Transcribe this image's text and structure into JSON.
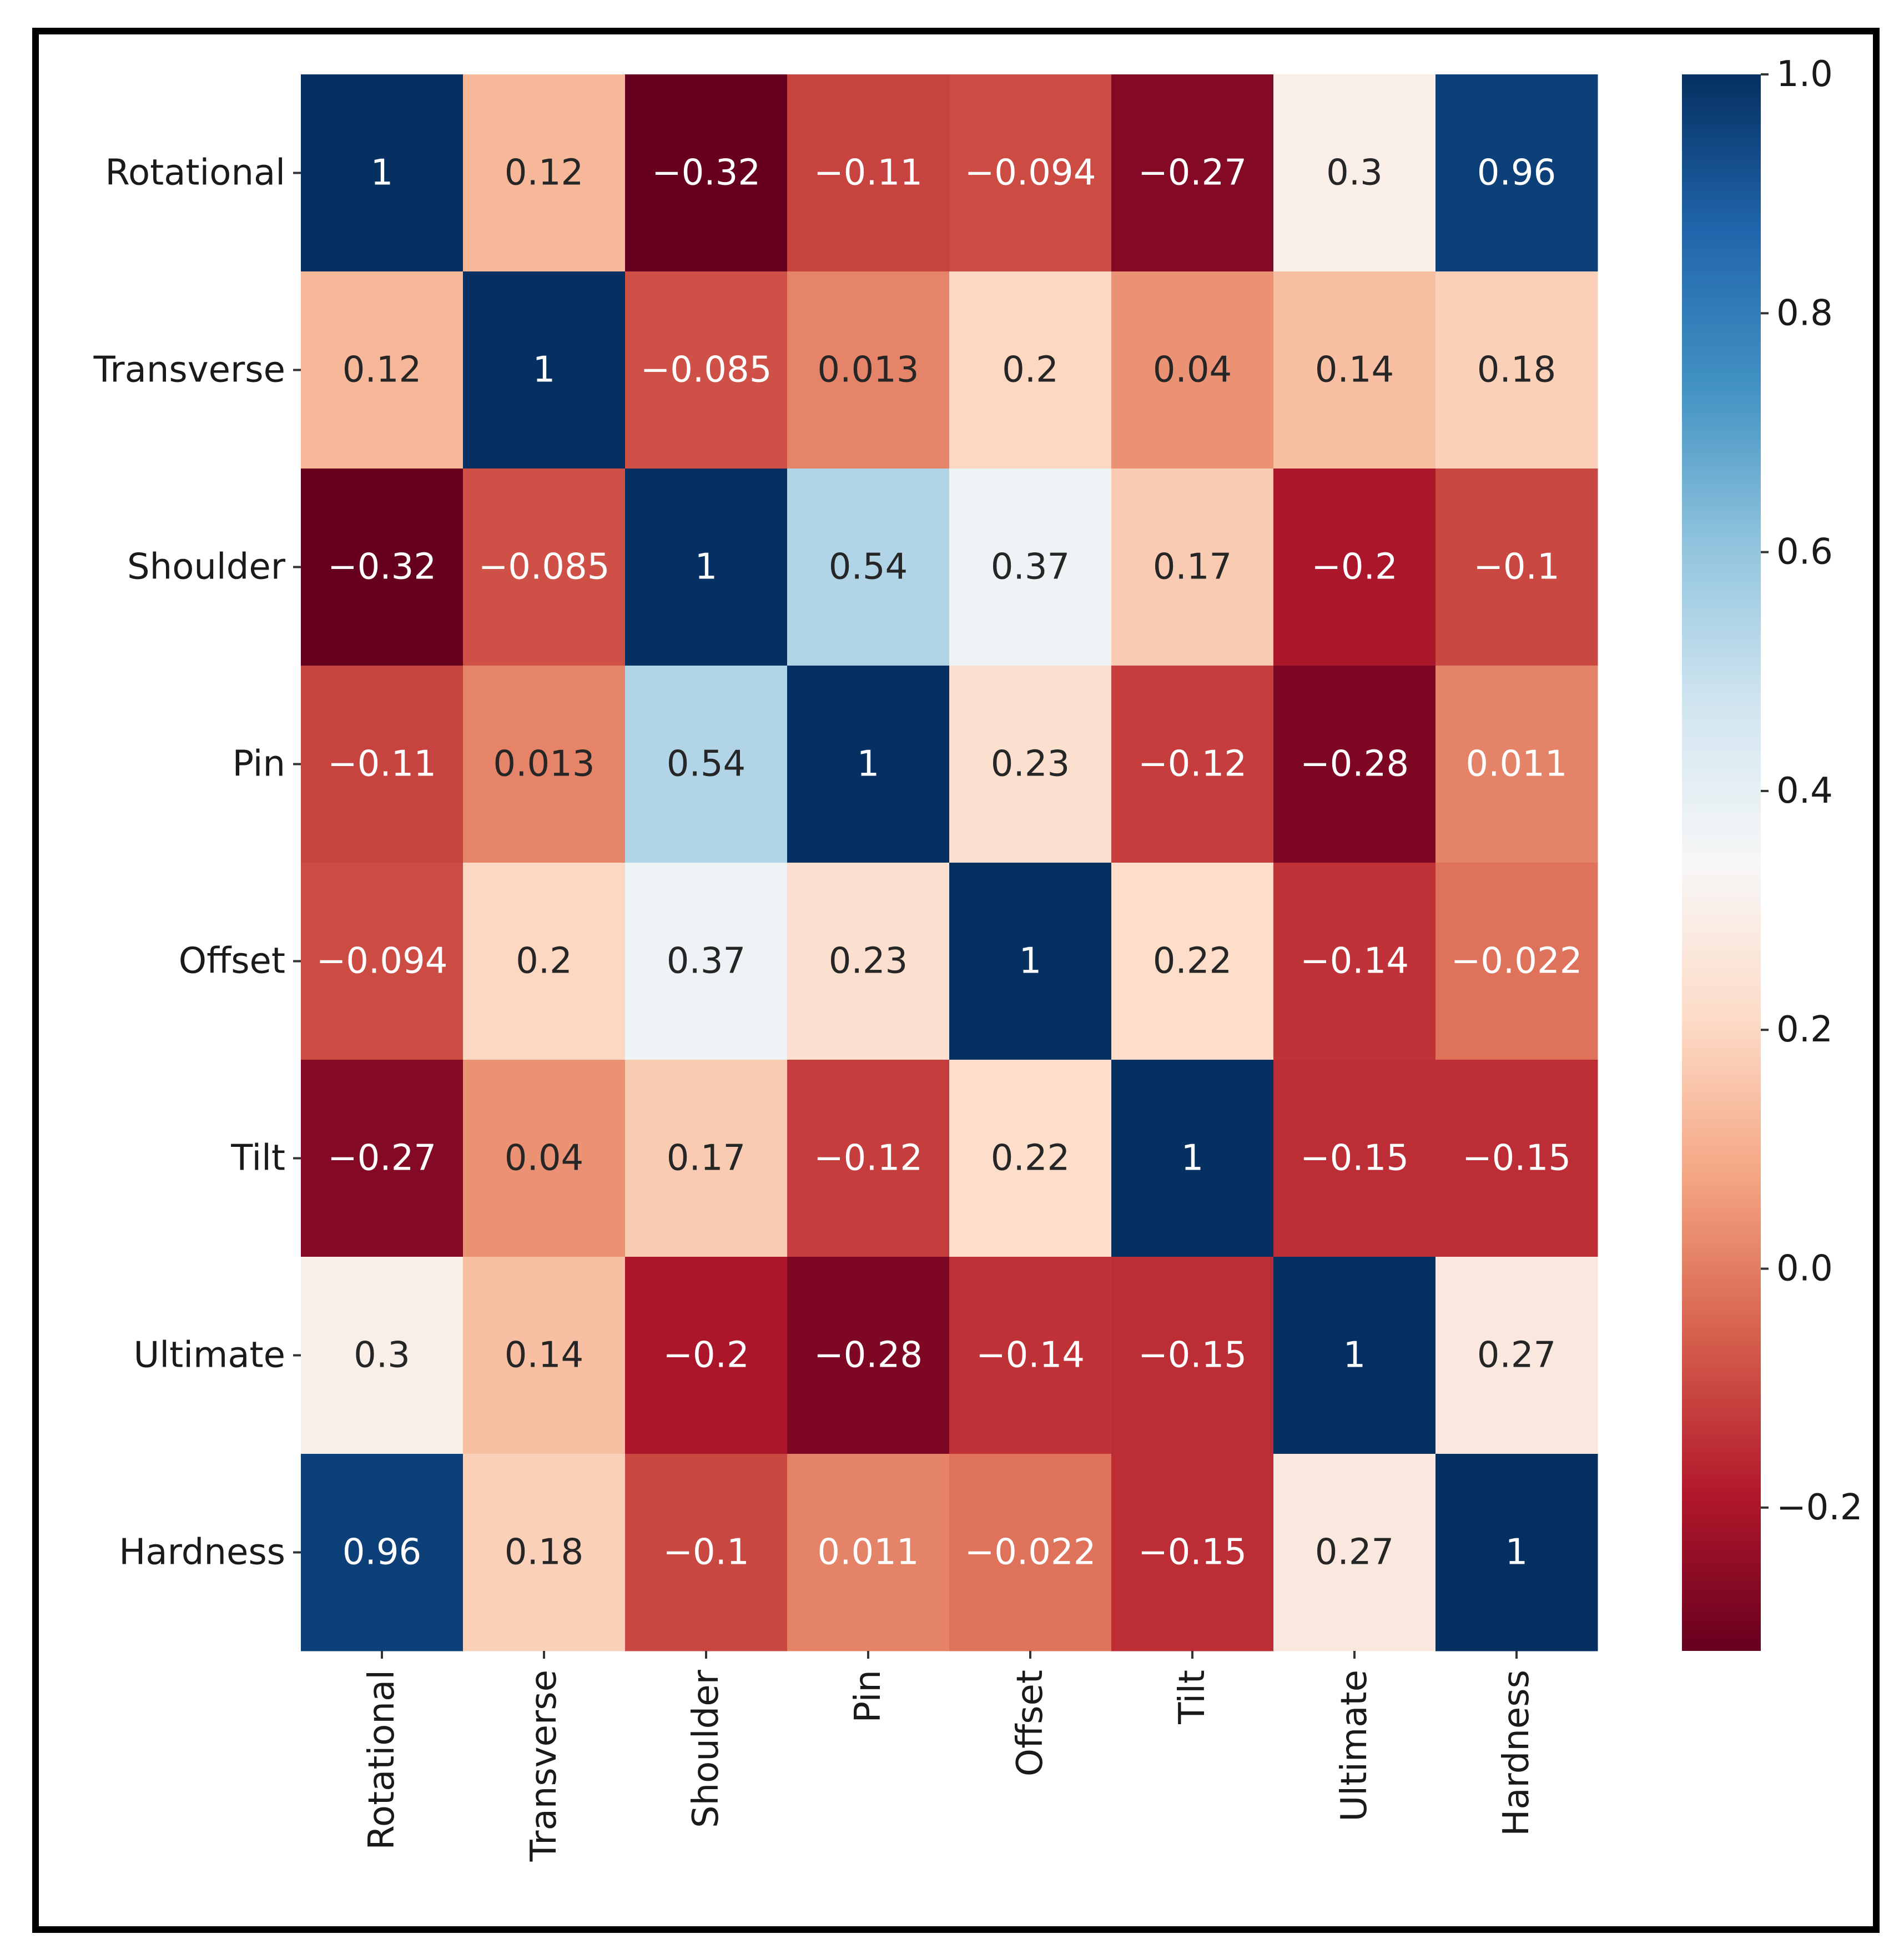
{
  "chart_data": {
    "type": "heatmap",
    "title": "",
    "xlabel": "",
    "ylabel": "",
    "row_labels": [
      "Rotational",
      "Transverse",
      "Shoulder",
      "Pin",
      "Offset",
      "Tilt",
      "Ultimate",
      "Hardness"
    ],
    "col_labels": [
      "Rotational",
      "Transverse",
      "Shoulder",
      "Pin",
      "Offset",
      "Tilt",
      "Ultimate",
      "Hardness"
    ],
    "values": [
      [
        1,
        0.12,
        -0.32,
        -0.11,
        -0.094,
        -0.27,
        0.3,
        0.96
      ],
      [
        0.12,
        1,
        -0.085,
        0.013,
        0.2,
        0.04,
        0.14,
        0.18
      ],
      [
        -0.32,
        -0.085,
        1,
        0.54,
        0.37,
        0.17,
        -0.2,
        -0.1
      ],
      [
        -0.11,
        0.013,
        0.54,
        1,
        0.23,
        -0.12,
        -0.28,
        0.011
      ],
      [
        -0.094,
        0.2,
        0.37,
        0.23,
        1,
        0.22,
        -0.14,
        -0.022
      ],
      [
        -0.27,
        0.04,
        0.17,
        -0.12,
        0.22,
        1,
        -0.15,
        -0.15
      ],
      [
        0.3,
        0.14,
        -0.2,
        -0.28,
        -0.14,
        -0.15,
        1,
        0.27
      ],
      [
        0.96,
        0.18,
        -0.1,
        0.011,
        -0.022,
        -0.15,
        0.27,
        1
      ]
    ],
    "annotations": [
      [
        "1",
        "0.12",
        "−0.32",
        "−0.11",
        "−0.094",
        "−0.27",
        "0.3",
        "0.96"
      ],
      [
        "0.12",
        "1",
        "−0.085",
        "0.013",
        "0.2",
        "0.04",
        "0.14",
        "0.18"
      ],
      [
        "−0.32",
        "−0.085",
        "1",
        "0.54",
        "0.37",
        "0.17",
        "−0.2",
        "−0.1"
      ],
      [
        "−0.11",
        "0.013",
        "0.54",
        "1",
        "0.23",
        "−0.12",
        "−0.28",
        "0.011"
      ],
      [
        "−0.094",
        "0.2",
        "0.37",
        "0.23",
        "1",
        "0.22",
        "−0.14",
        "−0.022"
      ],
      [
        "−0.27",
        "0.04",
        "0.17",
        "−0.12",
        "0.22",
        "1",
        "−0.15",
        "−0.15"
      ],
      [
        "0.3",
        "0.14",
        "−0.2",
        "−0.28",
        "−0.14",
        "−0.15",
        "1",
        "0.27"
      ],
      [
        "0.96",
        "0.18",
        "−0.1",
        "0.011",
        "−0.022",
        "−0.15",
        "0.27",
        "1"
      ]
    ],
    "colormap": "RdBu",
    "vmin": -0.32,
    "vmax": 1.0,
    "colorbar": {
      "ticks": [
        1.0,
        0.8,
        0.6,
        0.4,
        0.2,
        0.0,
        -0.2
      ],
      "tick_labels": [
        "1.0",
        "0.8",
        "0.6",
        "0.4",
        "0.2",
        "0.0",
        "−0.2"
      ],
      "placement": "right"
    }
  }
}
